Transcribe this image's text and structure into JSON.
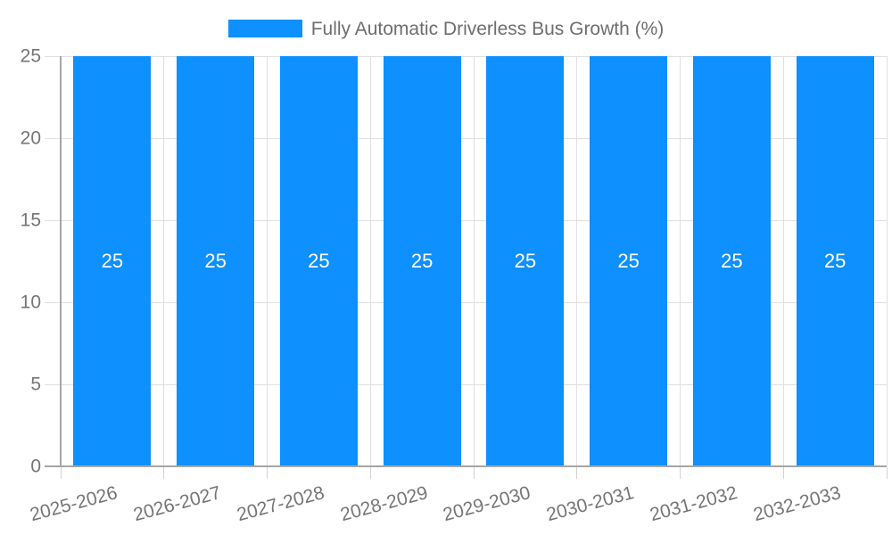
{
  "chart_data": {
    "type": "bar",
    "title": "",
    "categories": [
      "2025-2026",
      "2026-2027",
      "2027-2028",
      "2028-2029",
      "2029-2030",
      "2030-2031",
      "2031-2032",
      "2032-2033"
    ],
    "series": [
      {
        "name": "Fully Automatic Driverless Bus Growth (%)",
        "values": [
          25,
          25,
          25,
          25,
          25,
          25,
          25,
          25
        ]
      }
    ],
    "value_labels": [
      "25",
      "25",
      "25",
      "25",
      "25",
      "25",
      "25",
      "25"
    ],
    "xlabel": "",
    "ylabel": "",
    "ylim": [
      0,
      25
    ],
    "yticks": [
      0,
      5,
      10,
      15,
      20,
      25
    ],
    "grid": "on",
    "legend_position": "top",
    "colors": {
      "bar": "#0e90fe",
      "grid_line": "#e0e0e0",
      "axis_line": "#a6a6a6",
      "tick_mark": "#d2d2d2",
      "tick_text": "#757575",
      "legend_text": "#6e6e6e",
      "value_label_text": "#ffffff"
    }
  }
}
